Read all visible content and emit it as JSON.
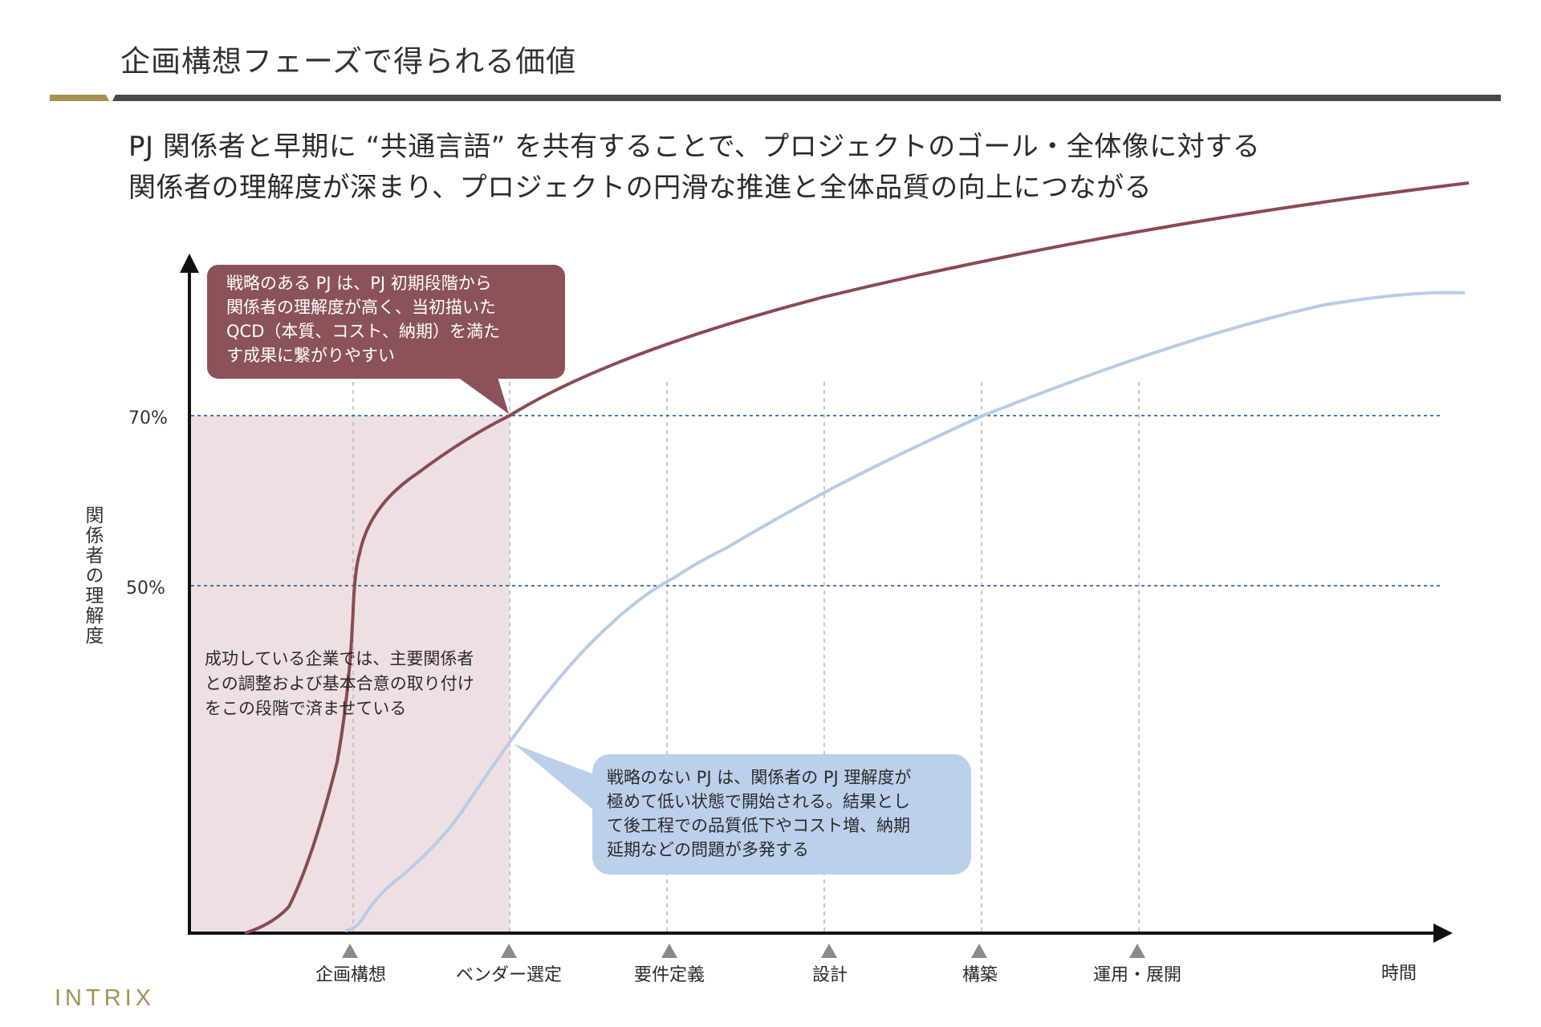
{
  "page": {
    "title": "企画構想フェーズで得られる価値"
  },
  "headline": {
    "line1": "PJ 関係者と早期に “共通言語” を共有することで、プロジェクトのゴール・全体像に対する",
    "line2": "関係者の理解度が深まり、プロジェクトの円滑な推進と全体品質の向上につながる"
  },
  "chart_data": {
    "type": "line",
    "ylabel": "関係者の理解度",
    "xlabel": "時間",
    "reference_lines": [
      "70%",
      "50%"
    ],
    "phases": [
      "企画構想",
      "ベンダー選定",
      "要件定義",
      "設計",
      "構築",
      "運用・展開"
    ],
    "series": [
      {
        "name": "戦略のある PJ",
        "color": "#8b4a52"
      },
      {
        "name": "戦略のない PJ",
        "color": "#b9cce6"
      }
    ]
  },
  "callouts": {
    "strategic": [
      "戦略のある PJ は、PJ 初期段階から",
      "関係者の理解度が高く、当初描いた",
      "QCD（本質、コスト、納期）を満た",
      "す成果に繋がりやすい"
    ],
    "note": [
      "成功している企業では、主要関係者",
      "との調整および基本合意の取り付け",
      "をこの段階で済ませている"
    ],
    "nonstrategic": [
      "戦略のない PJ は、関係者の PJ 理解度が",
      "極めて低い状態で開始される。結果とし",
      "て後工程での品質低下やコスト増、納期",
      "延期などの問題が多発する"
    ]
  },
  "colors": {
    "strategic_box": "#8b5359",
    "nonstrategic_box": "#bcd0ea",
    "shaded_region": "#eee0e2",
    "gold": "#a59254",
    "ref_line": "#2c6aa0"
  },
  "logo": {
    "text": "INTRIX"
  }
}
